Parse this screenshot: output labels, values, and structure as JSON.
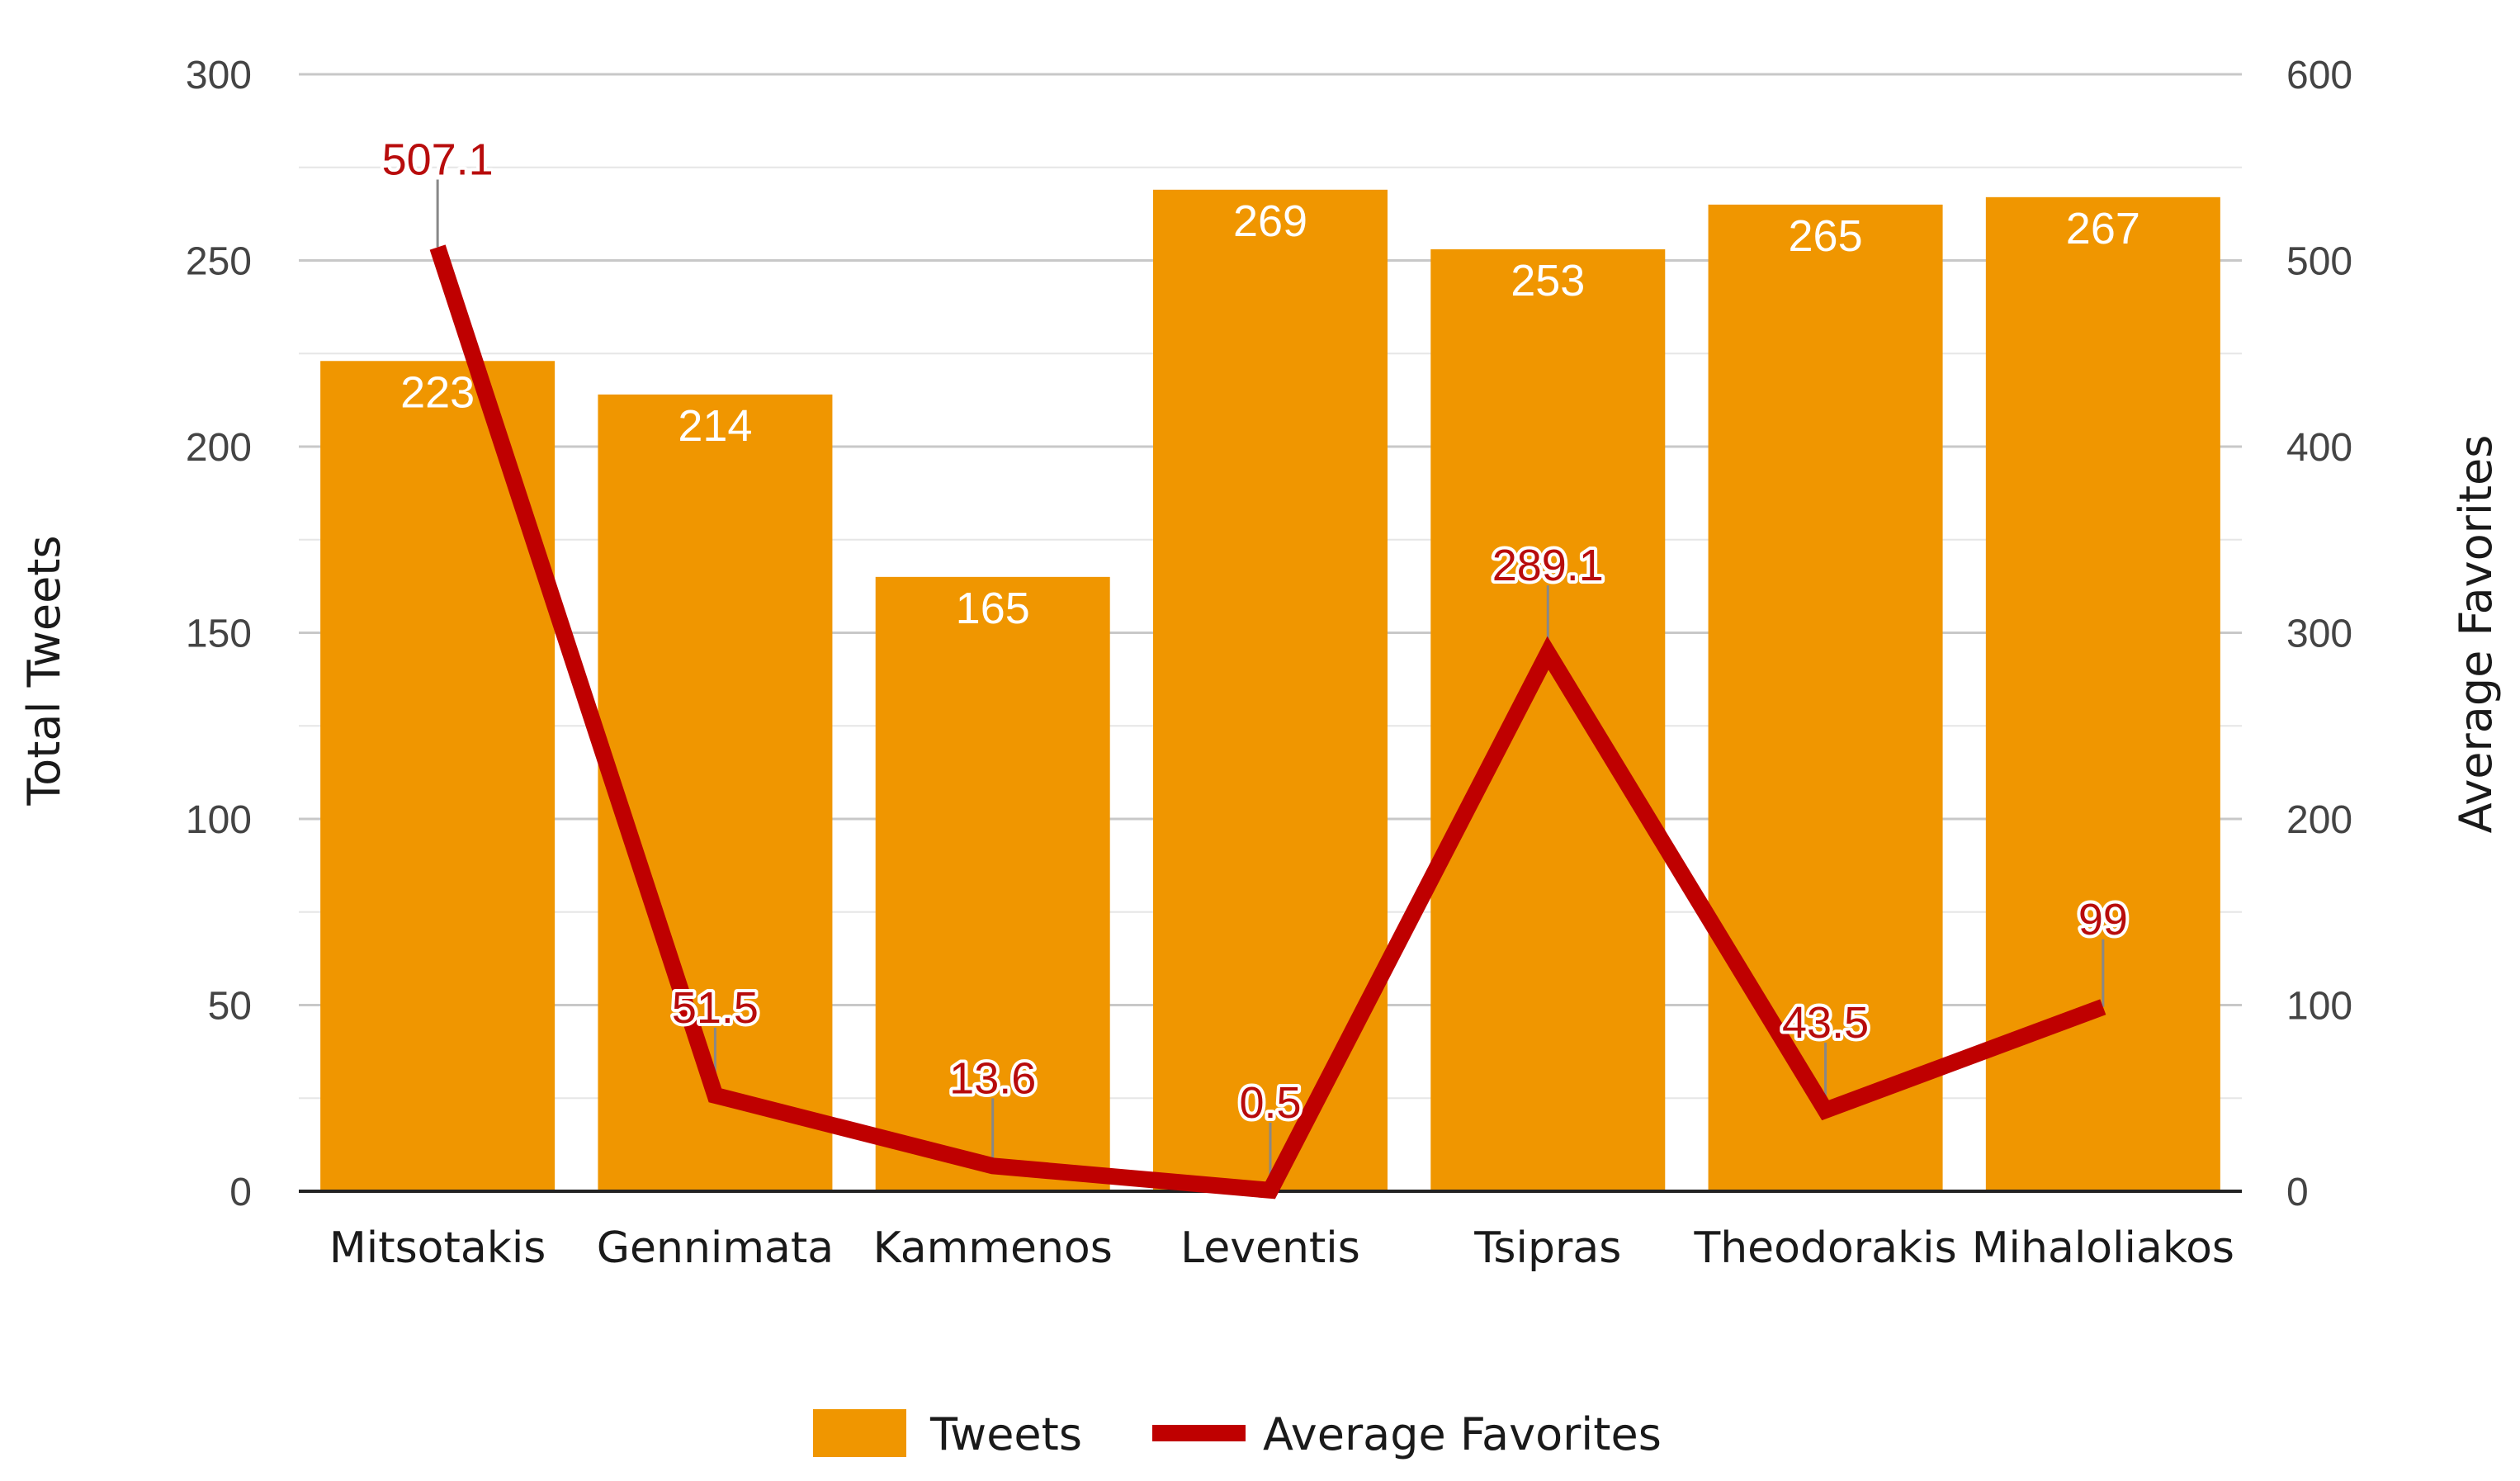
{
  "chart_data": {
    "type": "bar",
    "categories": [
      "Mitsotakis",
      "Gennimata",
      "Kammenos",
      "Leventis",
      "Tsipras",
      "Theodorakis",
      "Mihaloliakos"
    ],
    "series": [
      {
        "name": "Tweets",
        "type": "bar",
        "axis": "left",
        "color": "#f09600",
        "values": [
          223,
          214,
          165,
          269,
          253,
          265,
          267
        ],
        "labels": [
          "223",
          "214",
          "165",
          "269",
          "253",
          "265",
          "267"
        ]
      },
      {
        "name": "Average Favorites",
        "type": "line",
        "axis": "right",
        "color": "#bf0000",
        "values": [
          507.1,
          51.5,
          13.6,
          0.5,
          289.1,
          43.5,
          99
        ],
        "labels": [
          "507.1",
          "51.5",
          "13.6",
          "0.5",
          "289.1",
          "43.5",
          "99"
        ]
      }
    ],
    "ylabel": "Total Tweets",
    "ylabel_right": "Average Favorites",
    "ylim": [
      0,
      300
    ],
    "ylim_right": [
      0,
      600
    ],
    "yticks": [
      "0",
      "50",
      "100",
      "150",
      "200",
      "250",
      "300"
    ],
    "yticks_right": [
      "0",
      "100",
      "200",
      "300",
      "400",
      "500",
      "600"
    ],
    "grid": true,
    "legend": "bottom-center"
  }
}
